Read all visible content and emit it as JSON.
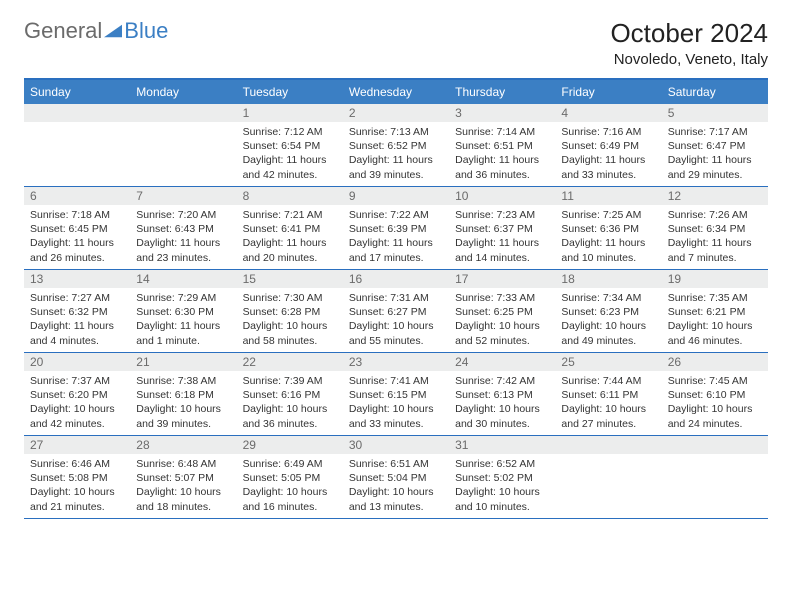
{
  "brand": {
    "word1": "General",
    "word2": "Blue"
  },
  "title": "October 2024",
  "location": "Novoledo, Veneto, Italy",
  "colors": {
    "header_bg": "#3b7fc4",
    "border": "#2a6fbf",
    "daynum_bg": "#eceded",
    "text": "#343434",
    "muted": "#6b6b6b"
  },
  "days_of_week": [
    "Sunday",
    "Monday",
    "Tuesday",
    "Wednesday",
    "Thursday",
    "Friday",
    "Saturday"
  ],
  "leading_blanks": 2,
  "cells": [
    {
      "n": "1",
      "sr": "Sunrise: 7:12 AM",
      "ss": "Sunset: 6:54 PM",
      "dl": "Daylight: 11 hours and 42 minutes."
    },
    {
      "n": "2",
      "sr": "Sunrise: 7:13 AM",
      "ss": "Sunset: 6:52 PM",
      "dl": "Daylight: 11 hours and 39 minutes."
    },
    {
      "n": "3",
      "sr": "Sunrise: 7:14 AM",
      "ss": "Sunset: 6:51 PM",
      "dl": "Daylight: 11 hours and 36 minutes."
    },
    {
      "n": "4",
      "sr": "Sunrise: 7:16 AM",
      "ss": "Sunset: 6:49 PM",
      "dl": "Daylight: 11 hours and 33 minutes."
    },
    {
      "n": "5",
      "sr": "Sunrise: 7:17 AM",
      "ss": "Sunset: 6:47 PM",
      "dl": "Daylight: 11 hours and 29 minutes."
    },
    {
      "n": "6",
      "sr": "Sunrise: 7:18 AM",
      "ss": "Sunset: 6:45 PM",
      "dl": "Daylight: 11 hours and 26 minutes."
    },
    {
      "n": "7",
      "sr": "Sunrise: 7:20 AM",
      "ss": "Sunset: 6:43 PM",
      "dl": "Daylight: 11 hours and 23 minutes."
    },
    {
      "n": "8",
      "sr": "Sunrise: 7:21 AM",
      "ss": "Sunset: 6:41 PM",
      "dl": "Daylight: 11 hours and 20 minutes."
    },
    {
      "n": "9",
      "sr": "Sunrise: 7:22 AM",
      "ss": "Sunset: 6:39 PM",
      "dl": "Daylight: 11 hours and 17 minutes."
    },
    {
      "n": "10",
      "sr": "Sunrise: 7:23 AM",
      "ss": "Sunset: 6:37 PM",
      "dl": "Daylight: 11 hours and 14 minutes."
    },
    {
      "n": "11",
      "sr": "Sunrise: 7:25 AM",
      "ss": "Sunset: 6:36 PM",
      "dl": "Daylight: 11 hours and 10 minutes."
    },
    {
      "n": "12",
      "sr": "Sunrise: 7:26 AM",
      "ss": "Sunset: 6:34 PM",
      "dl": "Daylight: 11 hours and 7 minutes."
    },
    {
      "n": "13",
      "sr": "Sunrise: 7:27 AM",
      "ss": "Sunset: 6:32 PM",
      "dl": "Daylight: 11 hours and 4 minutes."
    },
    {
      "n": "14",
      "sr": "Sunrise: 7:29 AM",
      "ss": "Sunset: 6:30 PM",
      "dl": "Daylight: 11 hours and 1 minute."
    },
    {
      "n": "15",
      "sr": "Sunrise: 7:30 AM",
      "ss": "Sunset: 6:28 PM",
      "dl": "Daylight: 10 hours and 58 minutes."
    },
    {
      "n": "16",
      "sr": "Sunrise: 7:31 AM",
      "ss": "Sunset: 6:27 PM",
      "dl": "Daylight: 10 hours and 55 minutes."
    },
    {
      "n": "17",
      "sr": "Sunrise: 7:33 AM",
      "ss": "Sunset: 6:25 PM",
      "dl": "Daylight: 10 hours and 52 minutes."
    },
    {
      "n": "18",
      "sr": "Sunrise: 7:34 AM",
      "ss": "Sunset: 6:23 PM",
      "dl": "Daylight: 10 hours and 49 minutes."
    },
    {
      "n": "19",
      "sr": "Sunrise: 7:35 AM",
      "ss": "Sunset: 6:21 PM",
      "dl": "Daylight: 10 hours and 46 minutes."
    },
    {
      "n": "20",
      "sr": "Sunrise: 7:37 AM",
      "ss": "Sunset: 6:20 PM",
      "dl": "Daylight: 10 hours and 42 minutes."
    },
    {
      "n": "21",
      "sr": "Sunrise: 7:38 AM",
      "ss": "Sunset: 6:18 PM",
      "dl": "Daylight: 10 hours and 39 minutes."
    },
    {
      "n": "22",
      "sr": "Sunrise: 7:39 AM",
      "ss": "Sunset: 6:16 PM",
      "dl": "Daylight: 10 hours and 36 minutes."
    },
    {
      "n": "23",
      "sr": "Sunrise: 7:41 AM",
      "ss": "Sunset: 6:15 PM",
      "dl": "Daylight: 10 hours and 33 minutes."
    },
    {
      "n": "24",
      "sr": "Sunrise: 7:42 AM",
      "ss": "Sunset: 6:13 PM",
      "dl": "Daylight: 10 hours and 30 minutes."
    },
    {
      "n": "25",
      "sr": "Sunrise: 7:44 AM",
      "ss": "Sunset: 6:11 PM",
      "dl": "Daylight: 10 hours and 27 minutes."
    },
    {
      "n": "26",
      "sr": "Sunrise: 7:45 AM",
      "ss": "Sunset: 6:10 PM",
      "dl": "Daylight: 10 hours and 24 minutes."
    },
    {
      "n": "27",
      "sr": "Sunrise: 6:46 AM",
      "ss": "Sunset: 5:08 PM",
      "dl": "Daylight: 10 hours and 21 minutes."
    },
    {
      "n": "28",
      "sr": "Sunrise: 6:48 AM",
      "ss": "Sunset: 5:07 PM",
      "dl": "Daylight: 10 hours and 18 minutes."
    },
    {
      "n": "29",
      "sr": "Sunrise: 6:49 AM",
      "ss": "Sunset: 5:05 PM",
      "dl": "Daylight: 10 hours and 16 minutes."
    },
    {
      "n": "30",
      "sr": "Sunrise: 6:51 AM",
      "ss": "Sunset: 5:04 PM",
      "dl": "Daylight: 10 hours and 13 minutes."
    },
    {
      "n": "31",
      "sr": "Sunrise: 6:52 AM",
      "ss": "Sunset: 5:02 PM",
      "dl": "Daylight: 10 hours and 10 minutes."
    }
  ]
}
